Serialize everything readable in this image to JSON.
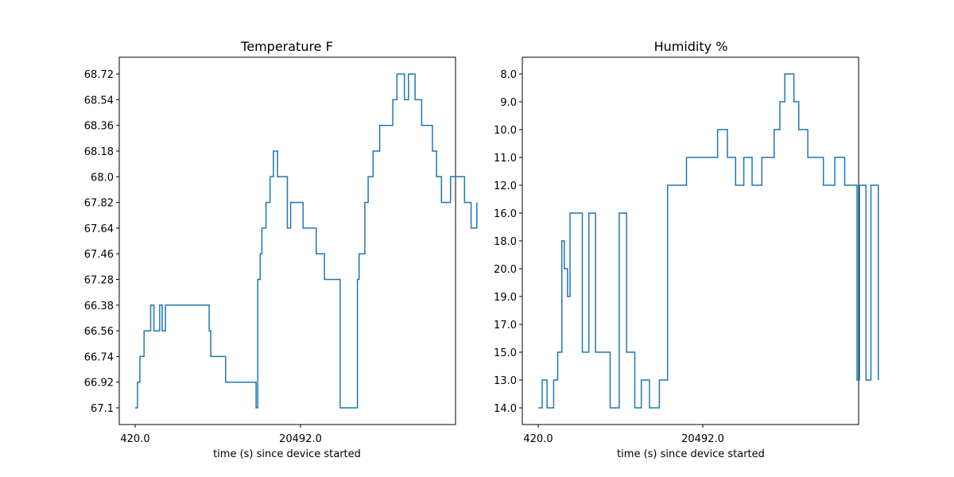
{
  "chart_data": [
    {
      "type": "line",
      "title": "Temperature F",
      "xlabel": "time (s) since device started",
      "ylabel": "",
      "x_ticks": [
        "420.0",
        "20492.0"
      ],
      "y_categories": [
        "67.1",
        "66.92",
        "66.74",
        "66.56",
        "66.38",
        "67.28",
        "67.46",
        "67.64",
        "67.82",
        "68.0",
        "68.18",
        "68.36",
        "68.54",
        "68.72"
      ],
      "grid": false,
      "series": [
        {
          "color": "#1f77b4",
          "x": [
            420,
            700,
            1000,
            1500,
            2300,
            2700,
            3400,
            3700,
            4100,
            4600,
            9400,
            9600,
            10300,
            11400,
            11600,
            12800,
            15100,
            15300,
            15600,
            15800,
            16300,
            16800,
            17200,
            17700,
            18900,
            19300,
            20800,
            22400,
            23400,
            25300,
            27400,
            27600,
            28300,
            28700,
            29300,
            30100,
            31700,
            32200,
            33100,
            33600,
            34400,
            35200,
            36500,
            37000,
            37600,
            38700,
            39600,
            40400,
            41200,
            41900
          ],
          "y_categories": [
            "67.1",
            "66.92",
            "66.74",
            "66.56",
            "66.38",
            "66.56",
            "66.38",
            "66.56",
            "66.38",
            "66.38",
            "66.56",
            "66.74",
            "66.74",
            "66.92",
            "66.92",
            "66.92",
            "67.1",
            "67.28",
            "67.46",
            "67.64",
            "67.82",
            "68.0",
            "68.18",
            "68.0",
            "67.64",
            "67.82",
            "67.64",
            "67.46",
            "67.28",
            "67.1",
            "67.28",
            "67.46",
            "67.82",
            "68.0",
            "68.18",
            "68.36",
            "68.54",
            "68.72",
            "68.54",
            "68.72",
            "68.54",
            "68.36",
            "68.18",
            "68.0",
            "67.82",
            "68.0",
            "68.0",
            "67.82",
            "67.64",
            "67.82"
          ]
        }
      ]
    },
    {
      "type": "line",
      "title": "Humidity %",
      "xlabel": "time (s) since device started",
      "ylabel": "",
      "x_ticks": [
        "420.0",
        "20492.0"
      ],
      "y_categories": [
        "14.0",
        "13.0",
        "15.0",
        "17.0",
        "19.0",
        "20.0",
        "18.0",
        "16.0",
        "12.0",
        "11.0",
        "10.0",
        "9.0",
        "8.0"
      ],
      "grid": false,
      "series": [
        {
          "color": "#1f77b4",
          "x": [
            420,
            900,
            1500,
            2300,
            2800,
            3300,
            3600,
            4000,
            4300,
            5000,
            5800,
            6600,
            7400,
            8400,
            9200,
            10300,
            11200,
            12200,
            13000,
            14000,
            15200,
            16200,
            17000,
            17500,
            18500,
            20500,
            22300,
            23500,
            24500,
            25500,
            26500,
            27700,
            29200,
            29900,
            30500,
            31600,
            32200,
            33300,
            35200,
            36600,
            37800,
            38900,
            39300,
            39600,
            40400,
            41000,
            41900
          ],
          "y_categories": [
            "14.0",
            "13.0",
            "14.0",
            "13.0",
            "15.0",
            "18.0",
            "20.0",
            "19.0",
            "16.0",
            "16.0",
            "15.0",
            "16.0",
            "15.0",
            "15.0",
            "14.0",
            "16.0",
            "15.0",
            "14.0",
            "13.0",
            "14.0",
            "13.0",
            "12.0",
            "12.0",
            "12.0",
            "11.0",
            "11.0",
            "10.0",
            "11.0",
            "12.0",
            "11.0",
            "12.0",
            "11.0",
            "10.0",
            "9.0",
            "8.0",
            "9.0",
            "10.0",
            "11.0",
            "12.0",
            "11.0",
            "12.0",
            "12.0",
            "13.0",
            "12.0",
            "13.0",
            "12.0",
            "13.0"
          ]
        }
      ]
    }
  ]
}
